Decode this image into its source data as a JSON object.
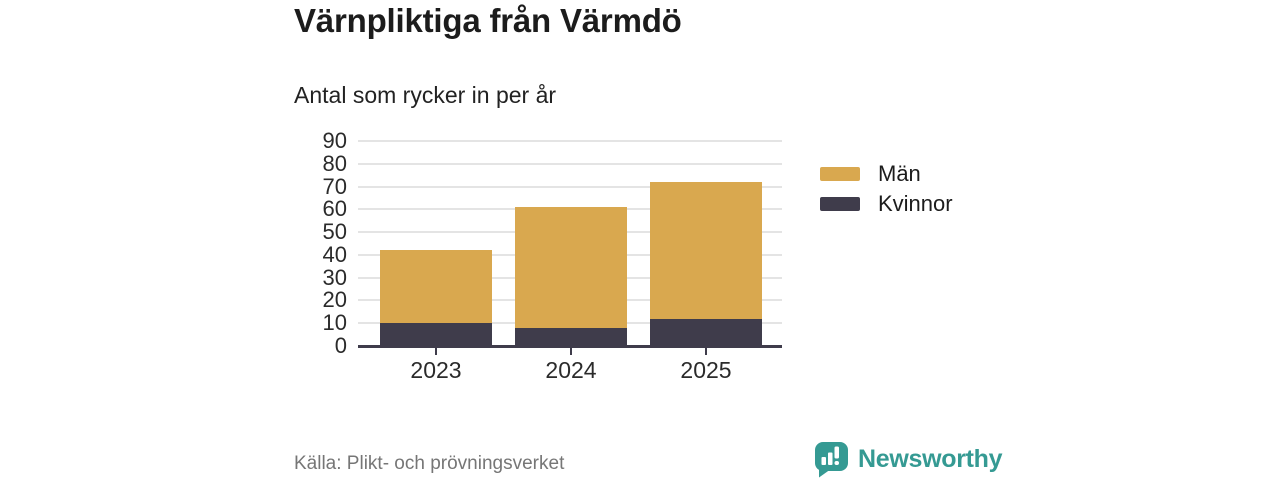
{
  "title": "Värnpliktiga från Värmdö",
  "subtitle": "Antal som rycker in per år",
  "source": "Källa: Plikt- och prövningsverket",
  "branding": {
    "name": "Newsworthy",
    "color": "#359a93",
    "icon": "bar-chart-speech-bubble-icon"
  },
  "legend": {
    "items": [
      {
        "label": "Män",
        "color": "#d9a84f"
      },
      {
        "label": "Kvinnor",
        "color": "#3f3c4b"
      }
    ]
  },
  "chart_data": {
    "type": "bar",
    "stacked": true,
    "title": "Värnpliktiga från Värmdö",
    "subtitle": "Antal som rycker in per år",
    "categories": [
      "2023",
      "2024",
      "2025"
    ],
    "series": [
      {
        "name": "Män",
        "color": "#d9a84f",
        "values": [
          32,
          53,
          60
        ]
      },
      {
        "name": "Kvinnor",
        "color": "#3f3c4b",
        "values": [
          10,
          8,
          12
        ]
      }
    ],
    "stack_order": [
      "Kvinnor",
      "Män"
    ],
    "stacked_totals": [
      42,
      61,
      72
    ],
    "xlabel": "",
    "ylabel": "",
    "ylim": [
      0,
      90
    ],
    "ytick_step": 10,
    "yticks": [
      0,
      10,
      20,
      30,
      40,
      50,
      60,
      70,
      80,
      90
    ],
    "grid": true,
    "grid_color": "#e4e4e4",
    "axis_color": "#3f3c4b",
    "legend_position": "right"
  }
}
